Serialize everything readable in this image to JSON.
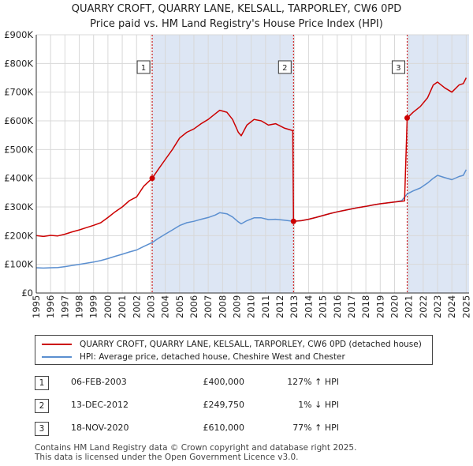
{
  "title_line1": "QUARRY CROFT, QUARRY LANE, KELSALL, TARPORLEY, CW6 0PD",
  "title_line2": "Price paid vs. HM Land Registry's House Price Index (HPI)",
  "chart_data": {
    "type": "line",
    "title": "QUARRY CROFT, QUARRY LANE, KELSALL, TARPORLEY, CW6 0PD — Price paid vs. HM Land Registry's House Price Index (HPI)",
    "xlabel": "",
    "ylabel": "",
    "xlim": [
      1995,
      2025.2
    ],
    "ylim": [
      0,
      900000
    ],
    "x_ticks": [
      1995,
      1996,
      1997,
      1998,
      1999,
      2000,
      2001,
      2002,
      2003,
      2004,
      2005,
      2006,
      2007,
      2008,
      2009,
      2010,
      2011,
      2012,
      2013,
      2014,
      2015,
      2016,
      2017,
      2018,
      2019,
      2020,
      2021,
      2022,
      2023,
      2024,
      2025
    ],
    "y_ticks": [
      {
        "value": 0,
        "label": "£0"
      },
      {
        "value": 100000,
        "label": "£100K"
      },
      {
        "value": 200000,
        "label": "£200K"
      },
      {
        "value": 300000,
        "label": "£300K"
      },
      {
        "value": 400000,
        "label": "£400K"
      },
      {
        "value": 500000,
        "label": "£500K"
      },
      {
        "value": 600000,
        "label": "£600K"
      },
      {
        "value": 700000,
        "label": "£700K"
      },
      {
        "value": 800000,
        "label": "£800K"
      },
      {
        "value": 900000,
        "label": "£900K"
      }
    ],
    "series": [
      {
        "name": "QUARRY CROFT, QUARRY LANE, KELSALL, TARPORLEY, CW6 0PD (detached house)",
        "color": "#cc0000",
        "points": [
          [
            1995.0,
            200000
          ],
          [
            1995.5,
            197000
          ],
          [
            1996.0,
            201000
          ],
          [
            1996.5,
            199000
          ],
          [
            1997.0,
            205000
          ],
          [
            1997.5,
            213000
          ],
          [
            1998.0,
            220000
          ],
          [
            1998.5,
            228000
          ],
          [
            1999.0,
            236000
          ],
          [
            1999.5,
            245000
          ],
          [
            2000.0,
            263000
          ],
          [
            2000.5,
            283000
          ],
          [
            2001.0,
            300000
          ],
          [
            2001.5,
            322000
          ],
          [
            2002.0,
            335000
          ],
          [
            2002.5,
            372000
          ],
          [
            2003.09,
            400000
          ],
          [
            2003.5,
            430000
          ],
          [
            2004.0,
            465000
          ],
          [
            2004.5,
            500000
          ],
          [
            2005.0,
            540000
          ],
          [
            2005.5,
            560000
          ],
          [
            2006.0,
            572000
          ],
          [
            2006.5,
            590000
          ],
          [
            2007.0,
            605000
          ],
          [
            2007.5,
            625000
          ],
          [
            2007.8,
            637000
          ],
          [
            2008.3,
            630000
          ],
          [
            2008.7,
            605000
          ],
          [
            2009.1,
            560000
          ],
          [
            2009.3,
            548000
          ],
          [
            2009.7,
            585000
          ],
          [
            2010.2,
            605000
          ],
          [
            2010.7,
            600000
          ],
          [
            2011.2,
            585000
          ],
          [
            2011.7,
            590000
          ],
          [
            2012.3,
            575000
          ],
          [
            2012.9,
            566000
          ],
          [
            2012.95,
            249750
          ],
          [
            2013.5,
            252000
          ],
          [
            2014.0,
            257000
          ],
          [
            2014.5,
            263000
          ],
          [
            2015.0,
            270000
          ],
          [
            2015.5,
            277000
          ],
          [
            2016.0,
            283000
          ],
          [
            2016.5,
            288000
          ],
          [
            2017.0,
            293000
          ],
          [
            2017.5,
            298000
          ],
          [
            2018.0,
            302000
          ],
          [
            2018.5,
            307000
          ],
          [
            2019.0,
            311000
          ],
          [
            2019.5,
            314000
          ],
          [
            2020.0,
            317000
          ],
          [
            2020.7,
            321000
          ],
          [
            2020.88,
            610000
          ],
          [
            2021.3,
            630000
          ],
          [
            2021.8,
            650000
          ],
          [
            2022.3,
            680000
          ],
          [
            2022.7,
            725000
          ],
          [
            2023.0,
            735000
          ],
          [
            2023.5,
            715000
          ],
          [
            2024.0,
            700000
          ],
          [
            2024.5,
            725000
          ],
          [
            2024.8,
            730000
          ],
          [
            2025.0,
            750000
          ]
        ]
      },
      {
        "name": "HPI: Average price, detached house, Cheshire West and Chester",
        "color": "#5b8fd0",
        "points": [
          [
            1995.0,
            88000
          ],
          [
            1995.5,
            87000
          ],
          [
            1996.0,
            88000
          ],
          [
            1996.5,
            89000
          ],
          [
            1997.0,
            92000
          ],
          [
            1997.5,
            96000
          ],
          [
            1998.0,
            100000
          ],
          [
            1998.5,
            104000
          ],
          [
            1999.0,
            108000
          ],
          [
            1999.5,
            113000
          ],
          [
            2000.0,
            120000
          ],
          [
            2000.5,
            128000
          ],
          [
            2001.0,
            135000
          ],
          [
            2001.5,
            143000
          ],
          [
            2002.0,
            150000
          ],
          [
            2002.5,
            162000
          ],
          [
            2003.09,
            176000
          ],
          [
            2003.5,
            190000
          ],
          [
            2004.0,
            205000
          ],
          [
            2004.5,
            220000
          ],
          [
            2005.0,
            235000
          ],
          [
            2005.5,
            245000
          ],
          [
            2006.0,
            250000
          ],
          [
            2006.5,
            257000
          ],
          [
            2007.0,
            263000
          ],
          [
            2007.5,
            272000
          ],
          [
            2007.8,
            280000
          ],
          [
            2008.3,
            276000
          ],
          [
            2008.7,
            265000
          ],
          [
            2009.1,
            248000
          ],
          [
            2009.3,
            241000
          ],
          [
            2009.7,
            252000
          ],
          [
            2010.2,
            262000
          ],
          [
            2010.7,
            262000
          ],
          [
            2011.2,
            256000
          ],
          [
            2011.7,
            257000
          ],
          [
            2012.3,
            254000
          ],
          [
            2012.95,
            250000
          ],
          [
            2013.5,
            252000
          ],
          [
            2014.0,
            257000
          ],
          [
            2014.5,
            263000
          ],
          [
            2015.0,
            270000
          ],
          [
            2015.5,
            277000
          ],
          [
            2016.0,
            283000
          ],
          [
            2016.5,
            288000
          ],
          [
            2017.0,
            293000
          ],
          [
            2017.5,
            298000
          ],
          [
            2018.0,
            302000
          ],
          [
            2018.5,
            307000
          ],
          [
            2019.0,
            311000
          ],
          [
            2019.5,
            314000
          ],
          [
            2020.0,
            317000
          ],
          [
            2020.5,
            322000
          ],
          [
            2020.88,
            345000
          ],
          [
            2021.3,
            356000
          ],
          [
            2021.8,
            366000
          ],
          [
            2022.3,
            383000
          ],
          [
            2022.7,
            400000
          ],
          [
            2023.0,
            410000
          ],
          [
            2023.5,
            402000
          ],
          [
            2024.0,
            395000
          ],
          [
            2024.5,
            406000
          ],
          [
            2024.8,
            410000
          ],
          [
            2025.0,
            430000
          ]
        ]
      }
    ],
    "annotations": [
      {
        "label": "1",
        "x": 2003.09,
        "y": 400000
      },
      {
        "label": "2",
        "x": 2012.95,
        "y": 249750
      },
      {
        "label": "3",
        "x": 2020.88,
        "y": 610000
      }
    ]
  },
  "legend": {
    "property_label": "QUARRY CROFT, QUARRY LANE, KELSALL, TARPORLEY, CW6 0PD (detached house)",
    "hpi_label": "HPI: Average price, detached house, Cheshire West and Chester"
  },
  "sales": [
    {
      "num": "1",
      "date": "06-FEB-2003",
      "price": "£400,000",
      "hpi": "127% ↑ HPI"
    },
    {
      "num": "2",
      "date": "13-DEC-2012",
      "price": "£249,750",
      "hpi": "1% ↓ HPI"
    },
    {
      "num": "3",
      "date": "18-NOV-2020",
      "price": "£610,000",
      "hpi": "77% ↑ HPI"
    }
  ],
  "footer": {
    "line1": "Contains HM Land Registry data © Crown copyright and database right 2025.",
    "line2": "This data is licensed under the Open Government Licence v3.0."
  },
  "colors": {
    "property": "#cc0000",
    "hpi": "#5b8fd0",
    "shade": "#dde6f4",
    "grid": "#d8d8d8",
    "sale_line": "#cc0000"
  }
}
